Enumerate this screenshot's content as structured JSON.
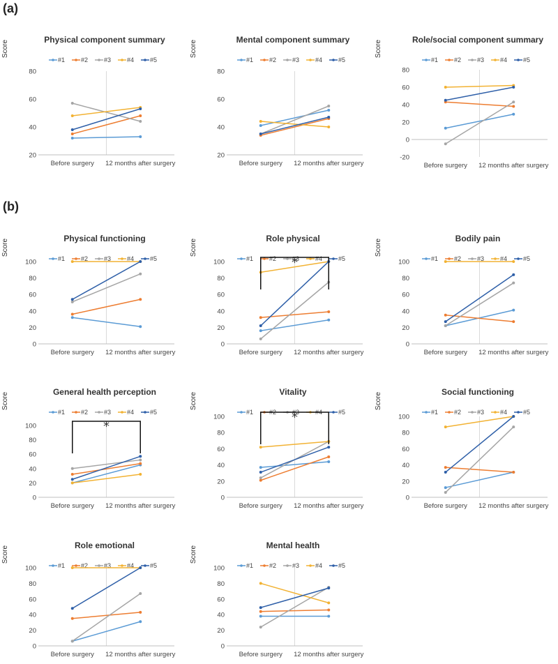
{
  "panel_labels": [
    "(a)",
    "(b)"
  ],
  "legend_labels": [
    "#1",
    "#2",
    "#3",
    "#4",
    "#5"
  ],
  "series_colors": [
    "#5b9bd5",
    "#ed7d31",
    "#a5a5a5",
    "#f2b233",
    "#2e5fa8"
  ],
  "y_axis_label": "Score",
  "chart_data": [
    {
      "type": "line",
      "title": "Physical component summary",
      "ylabel": "Score",
      "categories": [
        "Before surgery",
        "12 months after surgery"
      ],
      "ylim": [
        20,
        80
      ],
      "yticks": [
        20,
        40,
        60,
        80
      ],
      "series": [
        {
          "name": "#1",
          "values": [
            32,
            33
          ]
        },
        {
          "name": "#2",
          "values": [
            35,
            48
          ]
        },
        {
          "name": "#3",
          "values": [
            57,
            44
          ]
        },
        {
          "name": "#4",
          "values": [
            48,
            54
          ]
        },
        {
          "name": "#5",
          "values": [
            38,
            53
          ]
        }
      ]
    },
    {
      "type": "line",
      "title": "Mental component summary",
      "ylabel": "Score",
      "categories": [
        "Before surgery",
        "12 months after surgery"
      ],
      "ylim": [
        20,
        80
      ],
      "yticks": [
        20,
        40,
        60,
        80
      ],
      "series": [
        {
          "name": "#1",
          "values": [
            41,
            52
          ]
        },
        {
          "name": "#2",
          "values": [
            34,
            46
          ]
        },
        {
          "name": "#3",
          "values": [
            35,
            55
          ]
        },
        {
          "name": "#4",
          "values": [
            44,
            40
          ]
        },
        {
          "name": "#5",
          "values": [
            35,
            47
          ]
        }
      ]
    },
    {
      "type": "line",
      "title": "Role/social component summary",
      "ylabel": "Score",
      "categories": [
        "Before surgery",
        "12 months after surgery"
      ],
      "ylim": [
        -20,
        80
      ],
      "yticks": [
        -20,
        0,
        20,
        40,
        60,
        80
      ],
      "series": [
        {
          "name": "#1",
          "values": [
            13,
            29
          ]
        },
        {
          "name": "#2",
          "values": [
            43,
            38
          ]
        },
        {
          "name": "#3",
          "values": [
            -5,
            43
          ]
        },
        {
          "name": "#4",
          "values": [
            60,
            62
          ]
        },
        {
          "name": "#5",
          "values": [
            45,
            60
          ]
        }
      ]
    },
    {
      "type": "line",
      "title": "Physical functioning",
      "ylabel": "Score",
      "categories": [
        "Before surgery",
        "12 months after surgery"
      ],
      "ylim": [
        0,
        100
      ],
      "yticks": [
        0,
        20,
        40,
        60,
        80,
        100
      ],
      "series": [
        {
          "name": "#1",
          "values": [
            32,
            21
          ]
        },
        {
          "name": "#2",
          "values": [
            36,
            54
          ]
        },
        {
          "name": "#3",
          "values": [
            51,
            85
          ]
        },
        {
          "name": "#4",
          "values": [
            100,
            100
          ]
        },
        {
          "name": "#5",
          "values": [
            54,
            100
          ]
        }
      ]
    },
    {
      "type": "line",
      "title": "Role physical",
      "ylabel": "Score",
      "categories": [
        "Before surgery",
        "12 months after surgery"
      ],
      "ylim": [
        0,
        100
      ],
      "yticks": [
        0,
        20,
        40,
        60,
        80,
        100
      ],
      "significance": "*",
      "series": [
        {
          "name": "#1",
          "values": [
            16,
            29
          ]
        },
        {
          "name": "#2",
          "values": [
            32,
            39
          ]
        },
        {
          "name": "#3",
          "values": [
            6,
            75
          ]
        },
        {
          "name": "#4",
          "values": [
            87,
            100
          ]
        },
        {
          "name": "#5",
          "values": [
            22,
            100
          ]
        }
      ]
    },
    {
      "type": "line",
      "title": "Bodily pain",
      "ylabel": "Score",
      "categories": [
        "Before surgery",
        "12 months after surgery"
      ],
      "ylim": [
        0,
        100
      ],
      "yticks": [
        0,
        20,
        40,
        60,
        80,
        100
      ],
      "series": [
        {
          "name": "#1",
          "values": [
            22,
            41
          ]
        },
        {
          "name": "#2",
          "values": [
            35,
            27
          ]
        },
        {
          "name": "#3",
          "values": [
            22,
            74
          ]
        },
        {
          "name": "#4",
          "values": [
            100,
            100
          ]
        },
        {
          "name": "#5",
          "values": [
            27,
            84
          ]
        }
      ]
    },
    {
      "type": "line",
      "title": "General health perception",
      "ylabel": "Score",
      "categories": [
        "Before surgery",
        "12 months after surgery"
      ],
      "ylim": [
        0,
        100
      ],
      "yticks": [
        0,
        20,
        40,
        60,
        80,
        100
      ],
      "significance": "*",
      "series": [
        {
          "name": "#1",
          "values": [
            20,
            45
          ]
        },
        {
          "name": "#2",
          "values": [
            32,
            47
          ]
        },
        {
          "name": "#3",
          "values": [
            40,
            52
          ]
        },
        {
          "name": "#4",
          "values": [
            20,
            32
          ]
        },
        {
          "name": "#5",
          "values": [
            25,
            57
          ]
        }
      ]
    },
    {
      "type": "line",
      "title": "Vitality",
      "ylabel": "Score",
      "categories": [
        "Before surgery",
        "12 months after surgery"
      ],
      "ylim": [
        0,
        100
      ],
      "yticks": [
        0,
        20,
        40,
        60,
        80,
        100
      ],
      "significance": "*",
      "series": [
        {
          "name": "#1",
          "values": [
            37,
            44
          ]
        },
        {
          "name": "#2",
          "values": [
            21,
            50
          ]
        },
        {
          "name": "#3",
          "values": [
            24,
            69
          ]
        },
        {
          "name": "#4",
          "values": [
            62,
            69
          ]
        },
        {
          "name": "#5",
          "values": [
            31,
            62
          ]
        }
      ]
    },
    {
      "type": "line",
      "title": "Social functioning",
      "ylabel": "Score",
      "categories": [
        "Before surgery",
        "12 months after surgery"
      ],
      "ylim": [
        0,
        100
      ],
      "yticks": [
        0,
        20,
        40,
        60,
        80,
        100
      ],
      "series": [
        {
          "name": "#1",
          "values": [
            12,
            31
          ]
        },
        {
          "name": "#2",
          "values": [
            37,
            31
          ]
        },
        {
          "name": "#3",
          "values": [
            6,
            87
          ]
        },
        {
          "name": "#4",
          "values": [
            87,
            100
          ]
        },
        {
          "name": "#5",
          "values": [
            31,
            100
          ]
        }
      ]
    },
    {
      "type": "line",
      "title": "Role emotional",
      "ylabel": "Score",
      "categories": [
        "Before surgery",
        "12 months after surgery"
      ],
      "ylim": [
        0,
        100
      ],
      "yticks": [
        0,
        20,
        40,
        60,
        80,
        100
      ],
      "series": [
        {
          "name": "#1",
          "values": [
            6,
            31
          ]
        },
        {
          "name": "#2",
          "values": [
            35,
            43
          ]
        },
        {
          "name": "#3",
          "values": [
            6,
            67
          ]
        },
        {
          "name": "#4",
          "values": [
            100,
            100
          ]
        },
        {
          "name": "#5",
          "values": [
            48,
            100
          ]
        }
      ]
    },
    {
      "type": "line",
      "title": "Mental health",
      "ylabel": "Score",
      "categories": [
        "Before surgery",
        "12 months after surgery"
      ],
      "ylim": [
        0,
        100
      ],
      "yticks": [
        0,
        20,
        40,
        60,
        80,
        100
      ],
      "series": [
        {
          "name": "#1",
          "values": [
            38,
            38
          ]
        },
        {
          "name": "#2",
          "values": [
            44,
            46
          ]
        },
        {
          "name": "#3",
          "values": [
            24,
            75
          ]
        },
        {
          "name": "#4",
          "values": [
            80,
            55
          ]
        },
        {
          "name": "#5",
          "values": [
            49,
            74
          ]
        }
      ]
    }
  ]
}
